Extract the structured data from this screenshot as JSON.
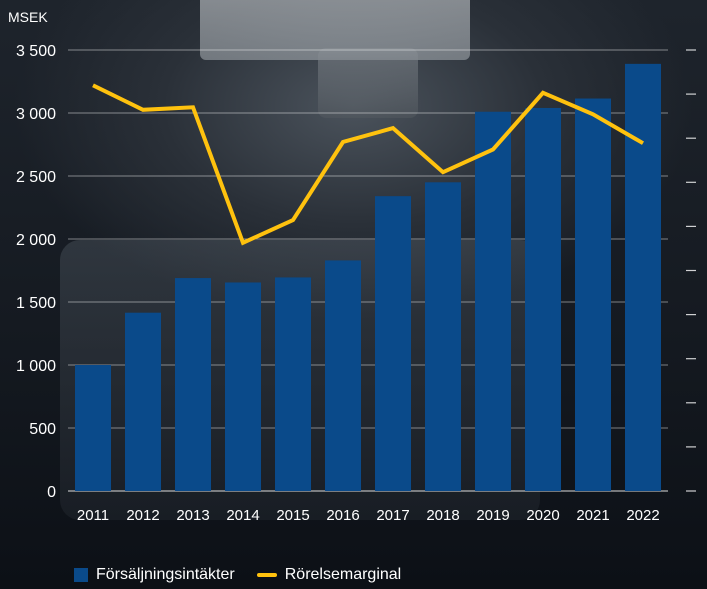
{
  "chart_data": {
    "type": "bar",
    "unit_label": "MSEK",
    "categories": [
      "2011",
      "2012",
      "2013",
      "2014",
      "2015",
      "2016",
      "2017",
      "2018",
      "2019",
      "2020",
      "2021",
      "2022"
    ],
    "ylim": [
      0,
      3500
    ],
    "y_ticks": [
      0,
      500,
      1000,
      1500,
      2000,
      2500,
      3000,
      3500
    ],
    "y_tick_labels": [
      "0",
      "500",
      "1 000",
      "1 500",
      "2 000",
      "2 500",
      "3 000",
      "3 500"
    ],
    "secondary_axis_tick_count": 11,
    "grid": true,
    "legend_position": "bottom-left",
    "series": [
      {
        "name": "Försäljningsintäkter",
        "type": "bar",
        "color": "#0a4a8a",
        "values": [
          1000,
          1415,
          1690,
          1655,
          1695,
          1830,
          2340,
          2450,
          3010,
          3040,
          3115,
          3390
        ]
      },
      {
        "name": "Rörelsemarginal",
        "type": "line",
        "color": "#ffc20e",
        "axis": "secondary",
        "values": [
          3220,
          3025,
          3045,
          1970,
          2150,
          2770,
          2880,
          2530,
          2710,
          3160,
          2990,
          2760
        ]
      }
    ]
  }
}
